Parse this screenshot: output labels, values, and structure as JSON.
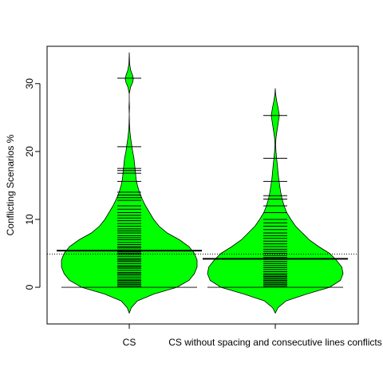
{
  "chart_data": {
    "type": "beanplot",
    "ylabel": "Conflicting Scenarios %",
    "ylim": [
      -5.4,
      35.5
    ],
    "y_ticks": [
      0,
      10,
      20,
      30
    ],
    "overall_mean": 4.9,
    "categories": [
      "CS",
      "CS without spacing and consecutive lines conflicts"
    ],
    "beans": [
      {
        "category": "CS",
        "mean": 5.4,
        "min": -3.8,
        "max": 34.6,
        "density": [
          [
            -3.8,
            0.0
          ],
          [
            -3.0,
            0.03
          ],
          [
            -2.0,
            0.12
          ],
          [
            -1.0,
            0.36
          ],
          [
            0.0,
            0.7
          ],
          [
            1.0,
            0.88
          ],
          [
            2.0,
            0.96
          ],
          [
            3.0,
            1.0
          ],
          [
            4.0,
            1.0
          ],
          [
            5.0,
            0.96
          ],
          [
            6.0,
            0.88
          ],
          [
            7.0,
            0.74
          ],
          [
            8.0,
            0.56
          ],
          [
            9.0,
            0.44
          ],
          [
            10.0,
            0.36
          ],
          [
            11.0,
            0.3
          ],
          [
            12.0,
            0.24
          ],
          [
            13.0,
            0.19
          ],
          [
            14.0,
            0.15
          ],
          [
            15.0,
            0.12
          ],
          [
            16.0,
            0.1
          ],
          [
            17.0,
            0.09
          ],
          [
            18.0,
            0.08
          ],
          [
            19.0,
            0.07
          ],
          [
            20.0,
            0.05
          ],
          [
            21.0,
            0.035
          ],
          [
            22.0,
            0.02
          ],
          [
            23.0,
            0.01
          ],
          [
            24.0,
            0.003
          ],
          [
            25.5,
            0.0
          ],
          [
            26.5,
            0.003
          ],
          [
            27.5,
            0.0
          ],
          [
            28.5,
            0.0
          ],
          [
            29.5,
            0.02
          ],
          [
            30.2,
            0.05
          ],
          [
            30.7,
            0.06
          ],
          [
            31.2,
            0.05
          ],
          [
            32.0,
            0.02
          ],
          [
            33.0,
            0.005
          ],
          [
            34.6,
            0.0
          ]
        ],
        "observations": [
          0.0,
          0.2,
          0.4,
          0.6,
          0.8,
          1.0,
          1.2,
          1.5,
          1.8,
          2.0,
          2.2,
          2.5,
          2.8,
          3.0,
          3.2,
          3.5,
          3.8,
          4.0,
          4.2,
          4.5,
          4.8,
          5.0,
          5.2,
          5.5,
          5.8,
          6.0,
          6.3,
          6.6,
          7.0,
          7.3,
          7.6,
          8.0,
          8.3,
          8.6,
          9.0,
          9.4,
          9.8,
          10.2,
          10.6,
          11.0,
          11.5,
          12.0,
          12.8,
          13.2,
          13.6,
          14.0,
          15.6,
          16.8,
          17.2,
          17.5,
          20.7,
          30.8
        ]
      },
      {
        "category": "CS without spacing and consecutive lines conflicts",
        "mean": 4.2,
        "min": -3.8,
        "max": 29.3,
        "density": [
          [
            -3.8,
            0.0
          ],
          [
            -3.0,
            0.04
          ],
          [
            -2.0,
            0.16
          ],
          [
            -1.0,
            0.46
          ],
          [
            0.0,
            0.8
          ],
          [
            1.0,
            0.96
          ],
          [
            2.0,
            1.0
          ],
          [
            3.0,
            0.98
          ],
          [
            4.0,
            0.9
          ],
          [
            5.0,
            0.8
          ],
          [
            6.0,
            0.64
          ],
          [
            7.0,
            0.5
          ],
          [
            8.0,
            0.4
          ],
          [
            9.0,
            0.3
          ],
          [
            10.0,
            0.23
          ],
          [
            11.0,
            0.17
          ],
          [
            12.0,
            0.13
          ],
          [
            13.0,
            0.1
          ],
          [
            14.0,
            0.08
          ],
          [
            15.0,
            0.065
          ],
          [
            16.0,
            0.05
          ],
          [
            17.0,
            0.04
          ],
          [
            18.0,
            0.03
          ],
          [
            19.0,
            0.02
          ],
          [
            20.0,
            0.01
          ],
          [
            21.0,
            0.005
          ],
          [
            22.0,
            0.01
          ],
          [
            23.0,
            0.025
          ],
          [
            24.0,
            0.04
          ],
          [
            25.3,
            0.06
          ],
          [
            26.5,
            0.04
          ],
          [
            27.5,
            0.02
          ],
          [
            28.5,
            0.005
          ],
          [
            29.3,
            0.0
          ]
        ],
        "observations": [
          0.0,
          0.2,
          0.4,
          0.6,
          0.8,
          1.0,
          1.2,
          1.4,
          1.6,
          1.8,
          2.0,
          2.3,
          2.6,
          2.9,
          3.2,
          3.5,
          3.8,
          4.1,
          4.4,
          4.7,
          5.0,
          5.3,
          5.6,
          6.0,
          6.4,
          6.8,
          7.2,
          7.6,
          8.0,
          8.5,
          9.0,
          9.5,
          10.0,
          11.0,
          12.0,
          13.0,
          13.5,
          15.6,
          19.0,
          25.3
        ]
      }
    ],
    "colors": {
      "bean_fill": "#00ff00",
      "outline": "#000000",
      "background": "#ffffff"
    }
  }
}
